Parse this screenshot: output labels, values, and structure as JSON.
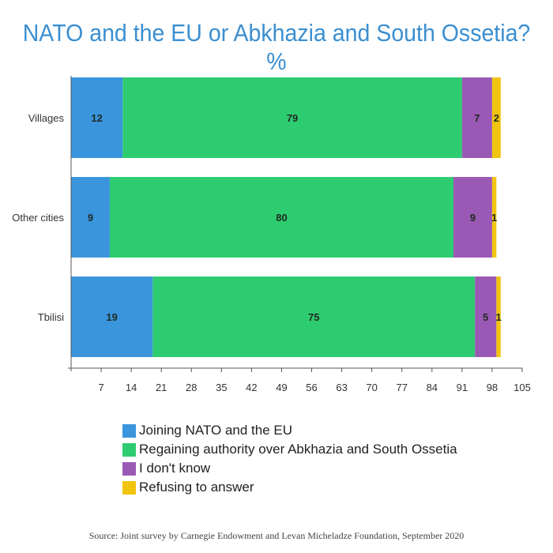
{
  "title": "NATO and the EU or Abkhazia and South Ossetia? %",
  "source": "Source: Joint survey by Carnegie Endowment and Levan Micheladze Foundation, September 2020",
  "colors": {
    "nato_eu": "#3a95dd",
    "regaining": "#2ecc71",
    "dont_know": "#9b59b6",
    "refusing": "#f1c40f"
  },
  "chart_data": {
    "type": "bar",
    "orientation": "horizontal",
    "stacked": true,
    "title": "NATO and the EU or Abkhazia and South Ossetia? %",
    "categories": [
      "Villages",
      "Other cities",
      "Tbilisi"
    ],
    "series": [
      {
        "name": "Joining NATO and the EU",
        "values": [
          12,
          9,
          19
        ]
      },
      {
        "name": "Regaining authority over Abkhazia and South Ossetia",
        "values": [
          79,
          80,
          75
        ]
      },
      {
        "name": "I don't know",
        "values": [
          7,
          9,
          5
        ]
      },
      {
        "name": "Refusing to answer",
        "values": [
          2,
          1,
          1
        ]
      }
    ],
    "x_ticks": [
      7,
      14,
      21,
      28,
      35,
      42,
      49,
      56,
      63,
      70,
      77,
      84,
      91,
      98,
      105
    ],
    "xlim": [
      0,
      105
    ],
    "grid": false,
    "legend_position": "bottom"
  }
}
